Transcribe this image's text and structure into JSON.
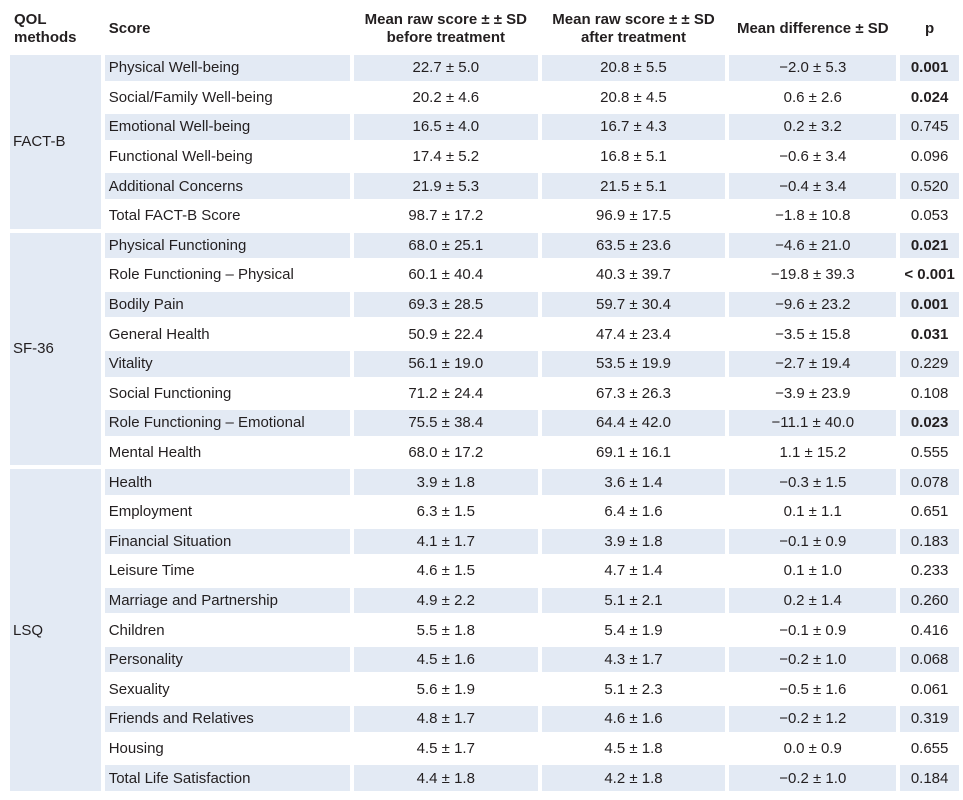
{
  "headers": {
    "methods": "QOL methods",
    "score": "Score",
    "before": "Mean raw score ± ± SD before treatment",
    "after": "Mean raw score ± ± SD after treatment",
    "diff": "Mean difference ± SD",
    "p": "p"
  },
  "groups": [
    {
      "method": "FACT-B",
      "rows": [
        {
          "score": "Physical Well-being",
          "before": "22.7 ± 5.0",
          "after": "20.8 ± 5.5",
          "diff": "−2.0 ± 5.3",
          "p": "0.001",
          "sig": true
        },
        {
          "score": "Social/Family Well-being",
          "before": "20.2 ± 4.6",
          "after": "20.8 ± 4.5",
          "diff": "0.6 ± 2.6",
          "p": "0.024",
          "sig": true
        },
        {
          "score": "Emotional Well-being",
          "before": "16.5 ± 4.0",
          "after": "16.7 ± 4.3",
          "diff": "0.2 ± 3.2",
          "p": "0.745",
          "sig": false
        },
        {
          "score": "Functional Well-being",
          "before": "17.4 ± 5.2",
          "after": "16.8 ± 5.1",
          "diff": "−0.6 ± 3.4",
          "p": "0.096",
          "sig": false
        },
        {
          "score": "Additional Concerns",
          "before": "21.9 ± 5.3",
          "after": "21.5 ± 5.1",
          "diff": "−0.4 ± 3.4",
          "p": "0.520",
          "sig": false
        },
        {
          "score": "Total FACT-B Score",
          "before": "98.7 ± 17.2",
          "after": "96.9 ± 17.5",
          "diff": "−1.8 ± 10.8",
          "p": "0.053",
          "sig": false
        }
      ]
    },
    {
      "method": "SF-36",
      "rows": [
        {
          "score": "Physical Functioning",
          "before": "68.0 ± 25.1",
          "after": "63.5 ± 23.6",
          "diff": "−4.6 ± 21.0",
          "p": "0.021",
          "sig": true
        },
        {
          "score": "Role Functioning – Physical",
          "before": "60.1 ± 40.4",
          "after": "40.3 ± 39.7",
          "diff": "−19.8 ± 39.3",
          "p": "< 0.001",
          "sig": true
        },
        {
          "score": "Bodily Pain",
          "before": "69.3 ± 28.5",
          "after": "59.7 ± 30.4",
          "diff": "−9.6 ± 23.2",
          "p": "0.001",
          "sig": true
        },
        {
          "score": "General Health",
          "before": "50.9 ± 22.4",
          "after": "47.4 ± 23.4",
          "diff": "−3.5 ± 15.8",
          "p": "0.031",
          "sig": true
        },
        {
          "score": "Vitality",
          "before": "56.1 ± 19.0",
          "after": "53.5 ± 19.9",
          "diff": "−2.7 ± 19.4",
          "p": "0.229",
          "sig": false
        },
        {
          "score": "Social Functioning",
          "before": "71.2 ± 24.4",
          "after": "67.3 ± 26.3",
          "diff": "−3.9 ± 23.9",
          "p": "0.108",
          "sig": false
        },
        {
          "score": "Role Functioning – Emotional",
          "before": "75.5 ± 38.4",
          "after": "64.4 ± 42.0",
          "diff": "−11.1 ± 40.0",
          "p": "0.023",
          "sig": true
        },
        {
          "score": "Mental Health",
          "before": "68.0 ± 17.2",
          "after": "69.1 ± 16.1",
          "diff": "1.1 ± 15.2",
          "p": "0.555",
          "sig": false
        }
      ]
    },
    {
      "method": "LSQ",
      "rows": [
        {
          "score": "Health",
          "before": "3.9 ± 1.8",
          "after": "3.6 ± 1.4",
          "diff": "−0.3 ± 1.5",
          "p": "0.078",
          "sig": false
        },
        {
          "score": "Employment",
          "before": "6.3 ± 1.5",
          "after": "6.4 ± 1.6",
          "diff": "0.1 ± 1.1",
          "p": "0.651",
          "sig": false
        },
        {
          "score": "Financial Situation",
          "before": "4.1 ± 1.7",
          "after": "3.9 ± 1.8",
          "diff": "−0.1 ± 0.9",
          "p": "0.183",
          "sig": false
        },
        {
          "score": "Leisure Time",
          "before": "4.6 ± 1.5",
          "after": "4.7 ± 1.4",
          "diff": "0.1 ± 1.0",
          "p": "0.233",
          "sig": false
        },
        {
          "score": "Marriage and Partnership",
          "before": "4.9 ± 2.2",
          "after": "5.1 ± 2.1",
          "diff": "0.2 ± 1.4",
          "p": "0.260",
          "sig": false
        },
        {
          "score": "Children",
          "before": "5.5 ± 1.8",
          "after": "5.4 ± 1.9",
          "diff": "−0.1 ± 0.9",
          "p": "0.416",
          "sig": false
        },
        {
          "score": "Personality",
          "before": "4.5 ± 1.6",
          "after": "4.3 ± 1.7",
          "diff": "−0.2 ± 1.0",
          "p": "0.068",
          "sig": false
        },
        {
          "score": "Sexuality",
          "before": "5.6 ± 1.9",
          "after": "5.1 ± 2.3",
          "diff": "−0.5 ± 1.6",
          "p": "0.061",
          "sig": false
        },
        {
          "score": "Friends and Relatives",
          "before": "4.8 ± 1.7",
          "after": "4.6 ± 1.6",
          "diff": "−0.2 ± 1.2",
          "p": "0.319",
          "sig": false
        },
        {
          "score": "Housing",
          "before": "4.5 ± 1.7",
          "after": "4.5 ± 1.8",
          "diff": "0.0 ± 0.9",
          "p": "0.655",
          "sig": false
        },
        {
          "score": "Total Life Satisfaction",
          "before": "4.4 ± 1.8",
          "after": "4.2 ± 1.8",
          "diff": "−0.2 ± 1.0",
          "p": "0.184",
          "sig": false
        }
      ]
    }
  ],
  "colors": {
    "shade": "#e3eaf4",
    "text": "#231f20"
  }
}
